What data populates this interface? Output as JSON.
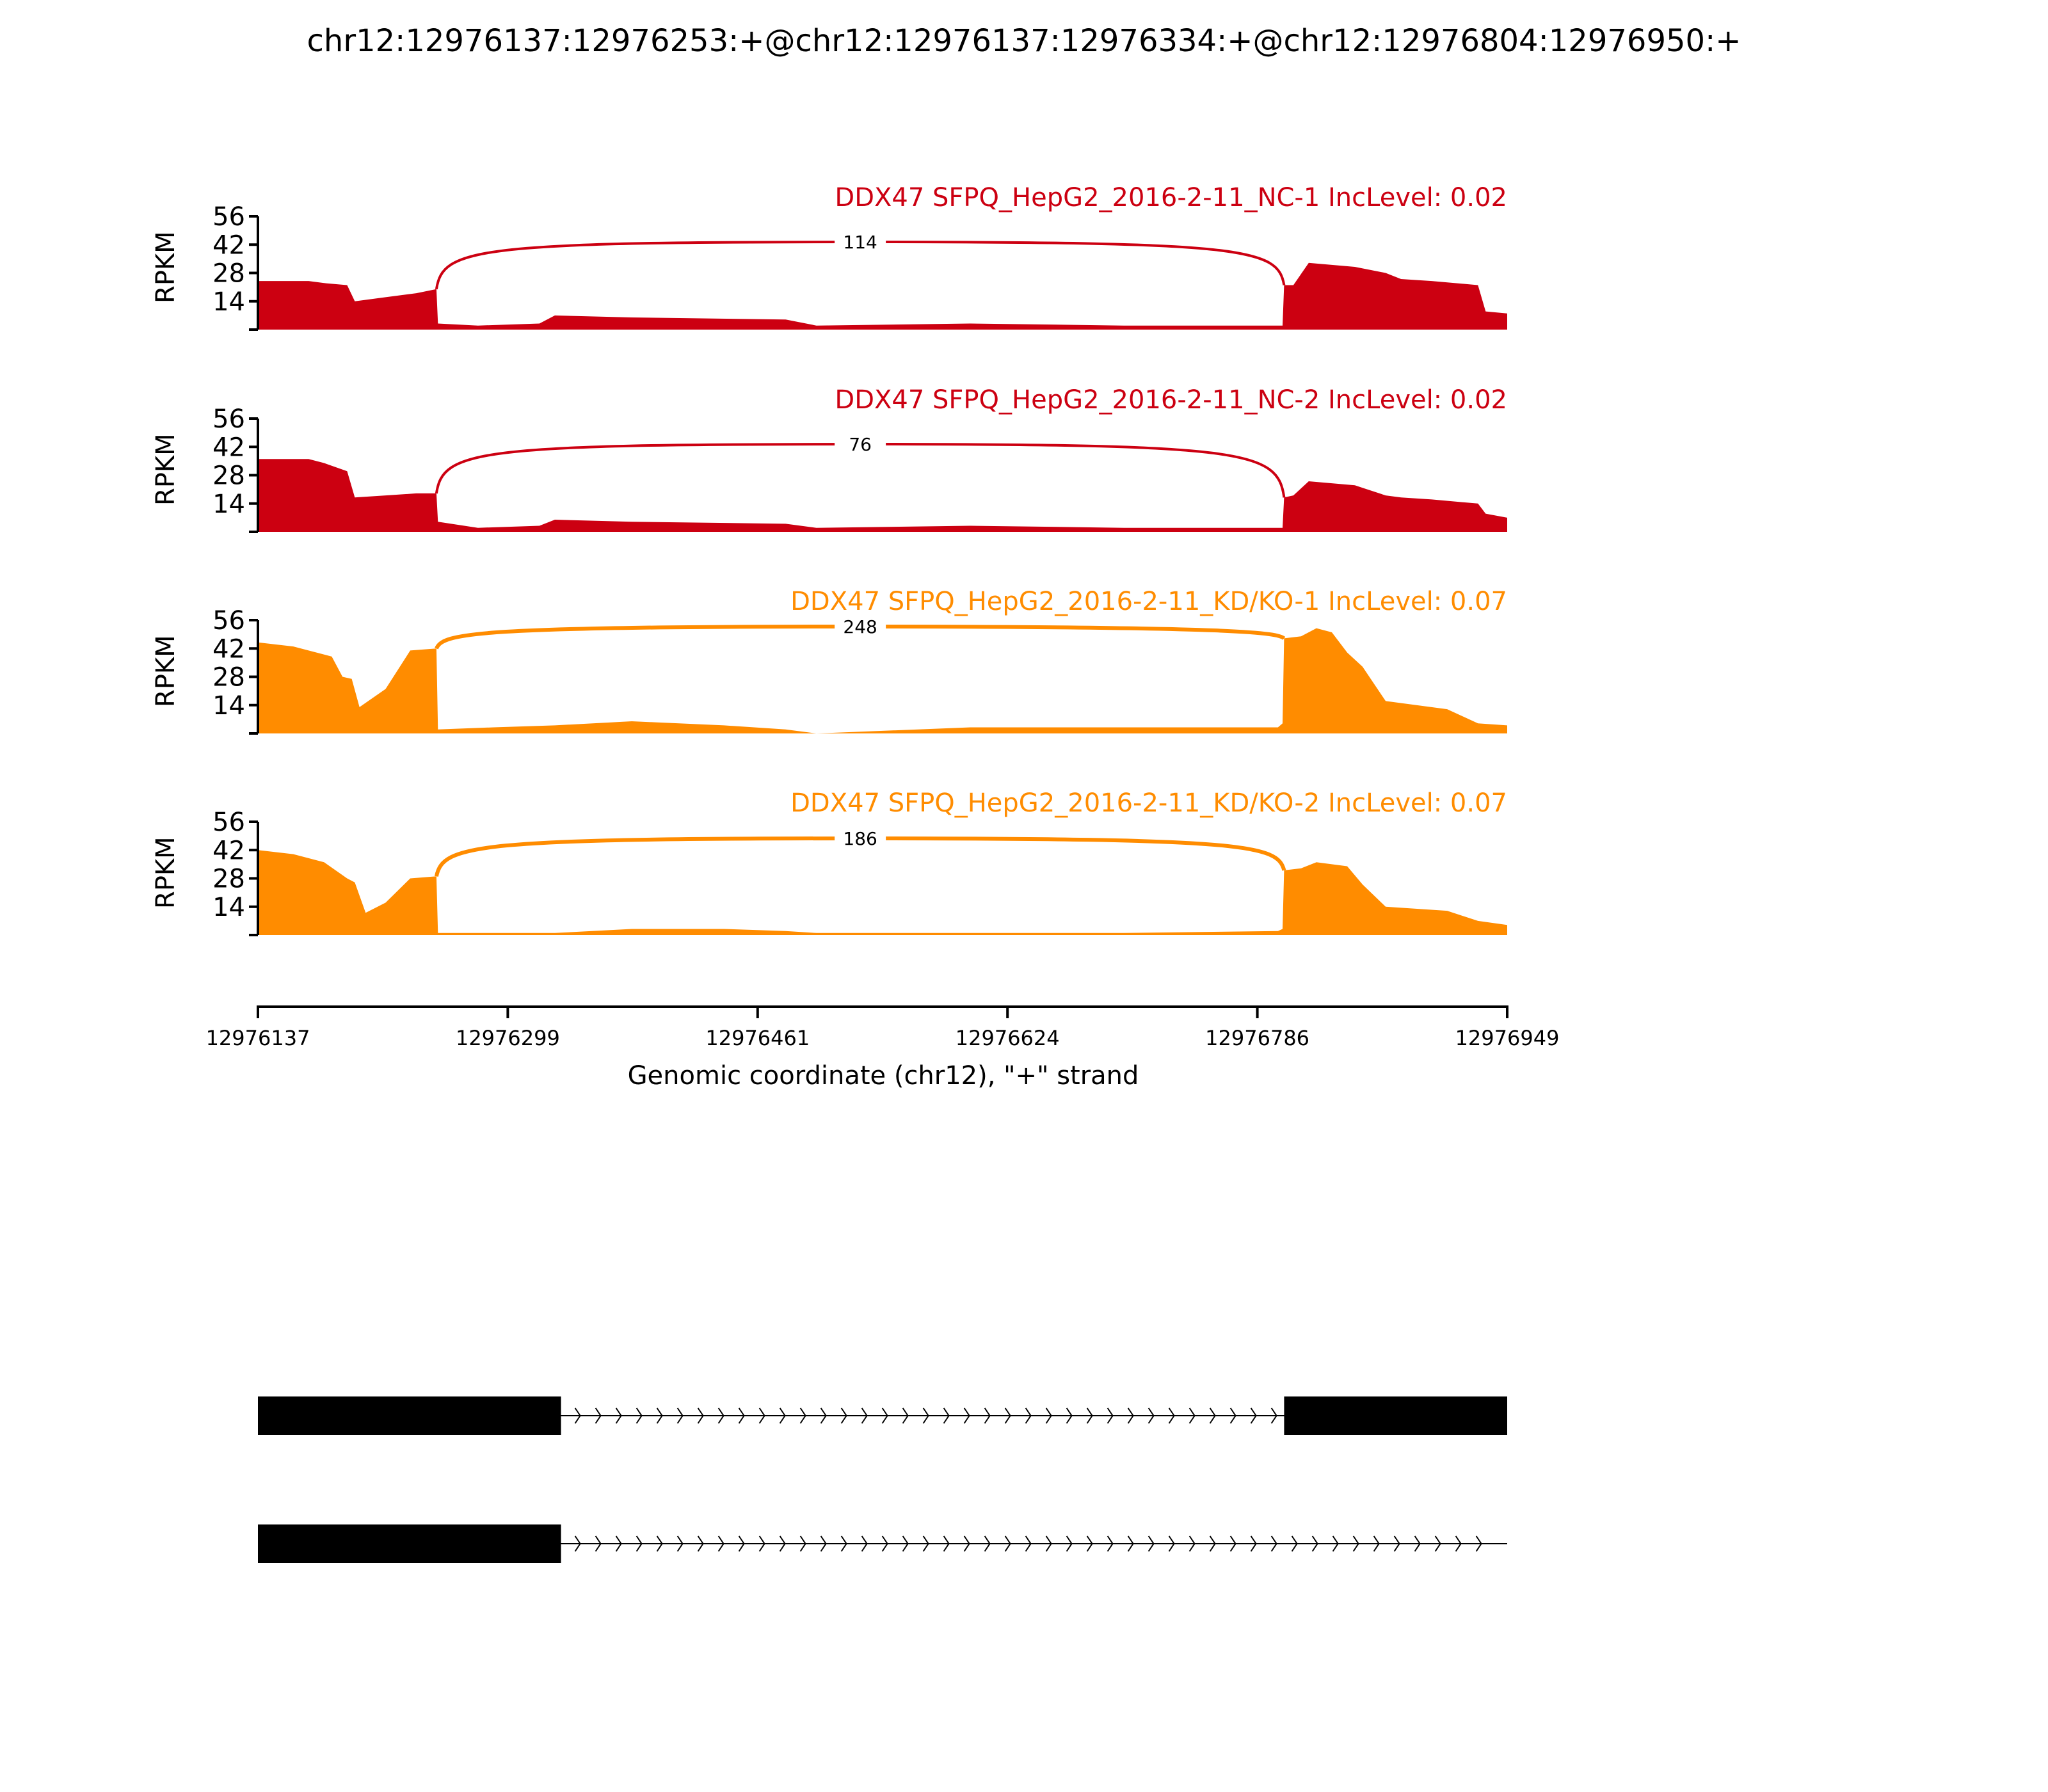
{
  "chart_data": {
    "type": "area",
    "title": "chr12:12976137:12976253:+@chr12:12976137:12976334:+@chr12:12976804:12976950:+",
    "ylabel": "RPKM",
    "xlabel": "Genomic coordinate (chr12), \"+\" strand",
    "xlim": [
      12976137,
      12976949
    ],
    "ylim": [
      0,
      56
    ],
    "x_ticks": [
      "12976137",
      "12976299",
      "12976461",
      "12976624",
      "12976786",
      "12976949"
    ],
    "y_ticks": [
      "14",
      "28",
      "42",
      "56"
    ],
    "tracks": [
      {
        "label": "DDX47 SFPQ_HepG2_2016-2-11_NC-1 IncLevel: 0.02",
        "color": "#cc0011",
        "junction": {
          "start": 12976253,
          "end": 12976804,
          "count": "114"
        },
        "x": [
          12976137,
          12976170,
          12976180,
          12976195,
          12976200,
          12976220,
          12976240,
          12976253,
          12976254,
          12976280,
          12976320,
          12976330,
          12976380,
          12976480,
          12976500,
          12976600,
          12976700,
          12976800,
          12976803,
          12976804,
          12976810,
          12976820,
          12976850,
          12976870,
          12976880,
          12976900,
          12976930,
          12976935,
          12976949
        ],
        "values": [
          24,
          24,
          23,
          22,
          14,
          16,
          18,
          20,
          3,
          2,
          3,
          7,
          6,
          5,
          2,
          3,
          2,
          2,
          2,
          22,
          22,
          33,
          31,
          28,
          25,
          24,
          22,
          9,
          8
        ]
      },
      {
        "label": "DDX47 SFPQ_HepG2_2016-2-11_NC-2 IncLevel: 0.02",
        "color": "#cc0011",
        "junction": {
          "start": 12976253,
          "end": 12976804,
          "count": "76"
        },
        "x": [
          12976137,
          12976170,
          12976180,
          12976195,
          12976200,
          12976220,
          12976240,
          12976253,
          12976254,
          12976280,
          12976320,
          12976330,
          12976380,
          12976480,
          12976500,
          12976600,
          12976700,
          12976800,
          12976803,
          12976804,
          12976810,
          12976820,
          12976850,
          12976870,
          12976880,
          12976900,
          12976930,
          12976935,
          12976949
        ],
        "values": [
          36,
          36,
          34,
          30,
          17,
          18,
          19,
          19,
          5,
          2,
          3,
          6,
          5,
          4,
          2,
          3,
          2,
          2,
          2,
          17,
          18,
          25,
          23,
          18,
          17,
          16,
          14,
          9,
          7
        ]
      },
      {
        "label": "DDX47 SFPQ_HepG2_2016-2-11_KD/KO-1 IncLevel: 0.07",
        "color": "#ff8c00",
        "junction": {
          "start": 12976253,
          "end": 12976804,
          "count": "248"
        },
        "x": [
          12976137,
          12976160,
          12976185,
          12976192,
          12976198,
          12976203,
          12976220,
          12976236,
          12976253,
          12976254,
          12976290,
          12976330,
          12976380,
          12976440,
          12976480,
          12976500,
          12976600,
          12976700,
          12976800,
          12976803,
          12976804,
          12976815,
          12976825,
          12976835,
          12976845,
          12976855,
          12976870,
          12976910,
          12976930,
          12976949
        ],
        "values": [
          45,
          43,
          38,
          28,
          27,
          13,
          22,
          41,
          42,
          2,
          3,
          4,
          6,
          4,
          2,
          0,
          3,
          3,
          3,
          5,
          47,
          48,
          52,
          50,
          40,
          33,
          16,
          12,
          5,
          4
        ]
      },
      {
        "label": "DDX47 SFPQ_HepG2_2016-2-11_KD/KO-2 IncLevel: 0.07",
        "color": "#ff8c00",
        "junction": {
          "start": 12976253,
          "end": 12976804,
          "count": "186"
        },
        "x": [
          12976137,
          12976160,
          12976180,
          12976195,
          12976200,
          12976207,
          12976220,
          12976236,
          12976253,
          12976254,
          12976290,
          12976330,
          12976380,
          12976440,
          12976480,
          12976500,
          12976600,
          12976700,
          12976800,
          12976803,
          12976804,
          12976815,
          12976825,
          12976845,
          12976855,
          12976870,
          12976910,
          12976930,
          12976949
        ],
        "values": [
          42,
          40,
          36,
          28,
          26,
          11,
          16,
          28,
          29,
          1,
          1,
          1,
          3,
          3,
          2,
          1,
          1,
          1,
          2,
          3,
          32,
          33,
          36,
          34,
          25,
          14,
          12,
          7,
          5
        ]
      }
    ],
    "transcripts": [
      {
        "exons": [
          [
            12976137,
            12976334
          ],
          [
            12976804,
            12976949
          ]
        ],
        "strand": "+"
      },
      {
        "exons": [
          [
            12976137,
            12976334
          ]
        ],
        "intron_end": 12976949,
        "strand": "+"
      }
    ]
  }
}
